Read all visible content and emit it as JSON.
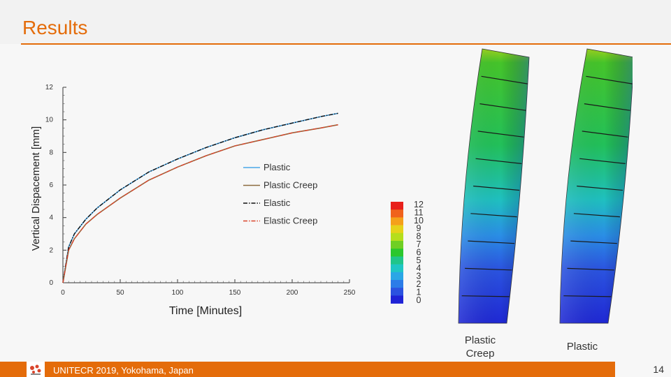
{
  "slide": {
    "title": "Results",
    "footer": "UNITECR 2019, Yokohama, Japan",
    "page_number": "14",
    "accent": "#e46c0a"
  },
  "figures": {
    "captions": [
      "Plastic\nCreep",
      "Plastic"
    ],
    "colorbar_labels": [
      "12",
      "11",
      "10",
      "9",
      "8",
      "7",
      "6",
      "5",
      "4",
      "3",
      "2",
      "1",
      "0"
    ]
  },
  "chart_data": {
    "type": "line",
    "xlabel": "Time [Minutes]",
    "ylabel": "Vertical Dispacement [mm]",
    "xlim": [
      0,
      250
    ],
    "ylim": [
      0,
      12
    ],
    "xticks": [
      0,
      50,
      100,
      150,
      200,
      250
    ],
    "yticks": [
      0,
      2,
      4,
      6,
      8,
      10,
      12
    ],
    "legend_position": "center-right",
    "series": [
      {
        "name": "Plastic",
        "style": "solid",
        "color": "#4aa8e8",
        "x": [
          0,
          5,
          10,
          20,
          30,
          50,
          75,
          100,
          125,
          150,
          175,
          200,
          225,
          240
        ],
        "y": [
          0,
          2.2,
          3.0,
          3.9,
          4.6,
          5.7,
          6.8,
          7.6,
          8.3,
          8.9,
          9.4,
          9.8,
          10.2,
          10.4
        ]
      },
      {
        "name": "Plastic Creep",
        "style": "solid",
        "color": "#8b6a3e",
        "x": [
          0,
          5,
          10,
          20,
          30,
          50,
          75,
          100,
          125,
          150,
          175,
          200,
          225,
          240
        ],
        "y": [
          0,
          2.0,
          2.7,
          3.6,
          4.2,
          5.2,
          6.3,
          7.1,
          7.8,
          8.4,
          8.8,
          9.2,
          9.5,
          9.7
        ]
      },
      {
        "name": "Elastic",
        "style": "dashdot",
        "color": "#111111",
        "x": [
          0,
          5,
          10,
          20,
          30,
          50,
          75,
          100,
          125,
          150,
          175,
          200,
          225,
          240
        ],
        "y": [
          0,
          2.2,
          3.0,
          3.9,
          4.6,
          5.7,
          6.8,
          7.6,
          8.3,
          8.9,
          9.4,
          9.8,
          10.2,
          10.4
        ]
      },
      {
        "name": "Elastic Creep",
        "style": "dashdot",
        "color": "#d9442b",
        "x": [
          0,
          5,
          10,
          20,
          30,
          50,
          75,
          100,
          125,
          150,
          175,
          200,
          225,
          240
        ],
        "y": [
          0,
          2.0,
          2.7,
          3.6,
          4.2,
          5.2,
          6.3,
          7.1,
          7.8,
          8.4,
          8.8,
          9.2,
          9.5,
          9.7
        ]
      }
    ]
  }
}
